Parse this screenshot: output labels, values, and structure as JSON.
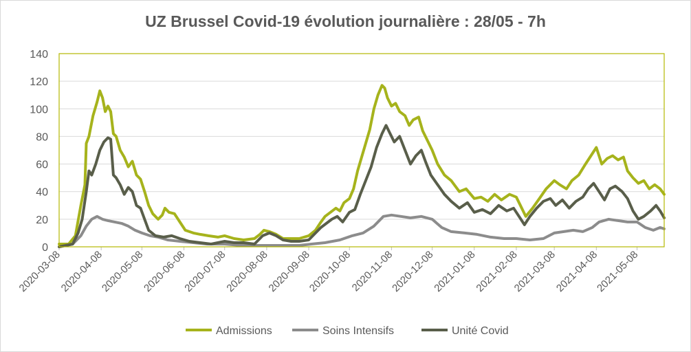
{
  "chart_data": {
    "type": "line",
    "title": "UZ Brussel Covid-19 évolution journalière : 28/05 - 7h",
    "xlabel": "",
    "ylabel": "",
    "ylim": [
      0,
      140
    ],
    "yticks": [
      "0",
      "20",
      "40",
      "60",
      "80",
      "100",
      "120",
      "140"
    ],
    "xticks": [
      "2020-03-08",
      "2020-04-08",
      "2020-05-08",
      "2020-06-08",
      "2020-07-08",
      "2020-08-08",
      "2020-09-08",
      "2020-10-08",
      "2020-11-08",
      "2020-12-08",
      "2021-01-08",
      "2021-02-08",
      "2021-03-08",
      "2021-04-08",
      "2021-05-08"
    ],
    "grid": true,
    "legend": "bottom",
    "x_range": [
      "2020-03-08",
      "2021-05-28"
    ],
    "series": [
      {
        "name": "Admissions",
        "color": "#a6b31c",
        "points": [
          [
            "2020-03-08",
            2
          ],
          [
            "2020-03-15",
            2
          ],
          [
            "2020-03-20",
            8
          ],
          [
            "2020-03-24",
            30
          ],
          [
            "2020-03-27",
            45
          ],
          [
            "2020-03-28",
            75
          ],
          [
            "2020-03-30",
            80
          ],
          [
            "2020-04-02",
            95
          ],
          [
            "2020-04-05",
            105
          ],
          [
            "2020-04-07",
            113
          ],
          [
            "2020-04-09",
            108
          ],
          [
            "2020-04-11",
            98
          ],
          [
            "2020-04-13",
            102
          ],
          [
            "2020-04-15",
            98
          ],
          [
            "2020-04-17",
            82
          ],
          [
            "2020-04-19",
            80
          ],
          [
            "2020-04-22",
            70
          ],
          [
            "2020-04-25",
            65
          ],
          [
            "2020-04-28",
            58
          ],
          [
            "2020-05-01",
            62
          ],
          [
            "2020-05-04",
            52
          ],
          [
            "2020-05-07",
            49
          ],
          [
            "2020-05-10",
            40
          ],
          [
            "2020-05-13",
            30
          ],
          [
            "2020-05-16",
            24
          ],
          [
            "2020-05-20",
            20
          ],
          [
            "2020-05-23",
            23
          ],
          [
            "2020-05-25",
            28
          ],
          [
            "2020-05-28",
            25
          ],
          [
            "2020-06-01",
            24
          ],
          [
            "2020-06-05",
            18
          ],
          [
            "2020-06-09",
            12
          ],
          [
            "2020-06-15",
            10
          ],
          [
            "2020-06-20",
            9
          ],
          [
            "2020-06-26",
            8
          ],
          [
            "2020-07-03",
            7
          ],
          [
            "2020-07-08",
            8
          ],
          [
            "2020-07-15",
            6
          ],
          [
            "2020-07-22",
            5
          ],
          [
            "2020-07-30",
            6
          ],
          [
            "2020-08-03",
            9
          ],
          [
            "2020-08-06",
            12
          ],
          [
            "2020-08-10",
            11
          ],
          [
            "2020-08-15",
            9
          ],
          [
            "2020-08-20",
            6
          ],
          [
            "2020-08-26",
            6
          ],
          [
            "2020-09-01",
            6
          ],
          [
            "2020-09-08",
            8
          ],
          [
            "2020-09-13",
            12
          ],
          [
            "2020-09-17",
            18
          ],
          [
            "2020-09-20",
            22
          ],
          [
            "2020-09-24",
            25
          ],
          [
            "2020-09-28",
            28
          ],
          [
            "2020-10-01",
            26
          ],
          [
            "2020-10-04",
            32
          ],
          [
            "2020-10-08",
            35
          ],
          [
            "2020-10-11",
            42
          ],
          [
            "2020-10-14",
            55
          ],
          [
            "2020-10-17",
            65
          ],
          [
            "2020-10-20",
            75
          ],
          [
            "2020-10-23",
            85
          ],
          [
            "2020-10-26",
            100
          ],
          [
            "2020-10-29",
            110
          ],
          [
            "2020-11-01",
            117
          ],
          [
            "2020-11-03",
            115
          ],
          [
            "2020-11-05",
            108
          ],
          [
            "2020-11-08",
            102
          ],
          [
            "2020-11-11",
            104
          ],
          [
            "2020-11-14",
            98
          ],
          [
            "2020-11-18",
            95
          ],
          [
            "2020-11-21",
            88
          ],
          [
            "2020-11-24",
            92
          ],
          [
            "2020-11-28",
            94
          ],
          [
            "2020-12-01",
            84
          ],
          [
            "2020-12-04",
            78
          ],
          [
            "2020-12-08",
            70
          ],
          [
            "2020-12-12",
            60
          ],
          [
            "2020-12-17",
            52
          ],
          [
            "2020-12-22",
            48
          ],
          [
            "2020-12-28",
            40
          ],
          [
            "2021-01-02",
            42
          ],
          [
            "2021-01-08",
            35
          ],
          [
            "2021-01-13",
            36
          ],
          [
            "2021-01-18",
            33
          ],
          [
            "2021-01-23",
            38
          ],
          [
            "2021-01-28",
            34
          ],
          [
            "2021-02-03",
            38
          ],
          [
            "2021-02-08",
            36
          ],
          [
            "2021-02-11",
            30
          ],
          [
            "2021-02-15",
            22
          ],
          [
            "2021-02-20",
            28
          ],
          [
            "2021-02-25",
            35
          ],
          [
            "2021-03-02",
            42
          ],
          [
            "2021-03-08",
            48
          ],
          [
            "2021-03-12",
            45
          ],
          [
            "2021-03-17",
            42
          ],
          [
            "2021-03-21",
            48
          ],
          [
            "2021-03-26",
            52
          ],
          [
            "2021-03-31",
            60
          ],
          [
            "2021-04-04",
            66
          ],
          [
            "2021-04-08",
            72
          ],
          [
            "2021-04-12",
            60
          ],
          [
            "2021-04-16",
            64
          ],
          [
            "2021-04-20",
            66
          ],
          [
            "2021-04-24",
            63
          ],
          [
            "2021-04-28",
            65
          ],
          [
            "2021-05-01",
            55
          ],
          [
            "2021-05-05",
            50
          ],
          [
            "2021-05-09",
            46
          ],
          [
            "2021-05-13",
            48
          ],
          [
            "2021-05-17",
            42
          ],
          [
            "2021-05-21",
            45
          ],
          [
            "2021-05-25",
            42
          ],
          [
            "2021-05-28",
            38
          ]
        ]
      },
      {
        "name": "Soins Intensifs",
        "color": "#8c8c8c",
        "points": [
          [
            "2020-03-08",
            0
          ],
          [
            "2020-03-18",
            2
          ],
          [
            "2020-03-24",
            8
          ],
          [
            "2020-03-28",
            15
          ],
          [
            "2020-04-01",
            20
          ],
          [
            "2020-04-05",
            22
          ],
          [
            "2020-04-09",
            20
          ],
          [
            "2020-04-13",
            19
          ],
          [
            "2020-04-18",
            18
          ],
          [
            "2020-04-23",
            17
          ],
          [
            "2020-04-28",
            15
          ],
          [
            "2020-05-03",
            12
          ],
          [
            "2020-05-08",
            10
          ],
          [
            "2020-05-14",
            8
          ],
          [
            "2020-05-20",
            7
          ],
          [
            "2020-05-27",
            5
          ],
          [
            "2020-06-05",
            4
          ],
          [
            "2020-06-15",
            3
          ],
          [
            "2020-06-25",
            2
          ],
          [
            "2020-07-08",
            2
          ],
          [
            "2020-07-20",
            1
          ],
          [
            "2020-08-01",
            1
          ],
          [
            "2020-08-15",
            1
          ],
          [
            "2020-09-01",
            1
          ],
          [
            "2020-09-10",
            2
          ],
          [
            "2020-09-20",
            3
          ],
          [
            "2020-10-01",
            5
          ],
          [
            "2020-10-10",
            8
          ],
          [
            "2020-10-18",
            10
          ],
          [
            "2020-10-26",
            15
          ],
          [
            "2020-11-02",
            22
          ],
          [
            "2020-11-08",
            23
          ],
          [
            "2020-11-15",
            22
          ],
          [
            "2020-11-22",
            21
          ],
          [
            "2020-11-30",
            22
          ],
          [
            "2020-12-08",
            20
          ],
          [
            "2020-12-15",
            14
          ],
          [
            "2020-12-22",
            11
          ],
          [
            "2021-01-01",
            10
          ],
          [
            "2021-01-10",
            9
          ],
          [
            "2021-01-20",
            7
          ],
          [
            "2021-01-30",
            6
          ],
          [
            "2021-02-08",
            6
          ],
          [
            "2021-02-18",
            5
          ],
          [
            "2021-02-28",
            6
          ],
          [
            "2021-03-08",
            10
          ],
          [
            "2021-03-15",
            11
          ],
          [
            "2021-03-22",
            12
          ],
          [
            "2021-03-29",
            11
          ],
          [
            "2021-04-05",
            14
          ],
          [
            "2021-04-10",
            18
          ],
          [
            "2021-04-17",
            20
          ],
          [
            "2021-04-24",
            19
          ],
          [
            "2021-05-01",
            18
          ],
          [
            "2021-05-08",
            18
          ],
          [
            "2021-05-14",
            14
          ],
          [
            "2021-05-20",
            12
          ],
          [
            "2021-05-25",
            14
          ],
          [
            "2021-05-28",
            13
          ]
        ]
      },
      {
        "name": "Unité Covid",
        "color": "#595e4a",
        "points": [
          [
            "2020-03-08",
            0
          ],
          [
            "2020-03-18",
            2
          ],
          [
            "2020-03-22",
            10
          ],
          [
            "2020-03-25",
            20
          ],
          [
            "2020-03-28",
            40
          ],
          [
            "2020-03-30",
            55
          ],
          [
            "2020-04-01",
            52
          ],
          [
            "2020-04-04",
            60
          ],
          [
            "2020-04-07",
            70
          ],
          [
            "2020-04-10",
            76
          ],
          [
            "2020-04-13",
            79
          ],
          [
            "2020-04-15",
            78
          ],
          [
            "2020-04-17",
            52
          ],
          [
            "2020-04-19",
            50
          ],
          [
            "2020-04-22",
            45
          ],
          [
            "2020-04-25",
            38
          ],
          [
            "2020-04-28",
            43
          ],
          [
            "2020-05-01",
            40
          ],
          [
            "2020-05-04",
            30
          ],
          [
            "2020-05-07",
            28
          ],
          [
            "2020-05-10",
            20
          ],
          [
            "2020-05-13",
            12
          ],
          [
            "2020-05-18",
            8
          ],
          [
            "2020-05-24",
            7
          ],
          [
            "2020-05-30",
            8
          ],
          [
            "2020-06-05",
            6
          ],
          [
            "2020-06-12",
            4
          ],
          [
            "2020-06-20",
            3
          ],
          [
            "2020-06-28",
            2
          ],
          [
            "2020-07-08",
            4
          ],
          [
            "2020-07-15",
            3
          ],
          [
            "2020-07-22",
            3
          ],
          [
            "2020-07-30",
            2
          ],
          [
            "2020-08-05",
            8
          ],
          [
            "2020-08-10",
            10
          ],
          [
            "2020-08-15",
            8
          ],
          [
            "2020-08-20",
            5
          ],
          [
            "2020-08-26",
            4
          ],
          [
            "2020-09-01",
            4
          ],
          [
            "2020-09-08",
            5
          ],
          [
            "2020-09-13",
            10
          ],
          [
            "2020-09-17",
            14
          ],
          [
            "2020-09-21",
            17
          ],
          [
            "2020-09-25",
            20
          ],
          [
            "2020-09-29",
            22
          ],
          [
            "2020-10-03",
            18
          ],
          [
            "2020-10-08",
            25
          ],
          [
            "2020-10-12",
            27
          ],
          [
            "2020-10-16",
            38
          ],
          [
            "2020-10-20",
            48
          ],
          [
            "2020-10-24",
            58
          ],
          [
            "2020-10-28",
            72
          ],
          [
            "2020-11-01",
            82
          ],
          [
            "2020-11-04",
            88
          ],
          [
            "2020-11-07",
            82
          ],
          [
            "2020-11-10",
            76
          ],
          [
            "2020-11-14",
            80
          ],
          [
            "2020-11-18",
            70
          ],
          [
            "2020-11-22",
            60
          ],
          [
            "2020-11-26",
            66
          ],
          [
            "2020-11-30",
            70
          ],
          [
            "2020-12-03",
            62
          ],
          [
            "2020-12-07",
            52
          ],
          [
            "2020-12-12",
            45
          ],
          [
            "2020-12-17",
            38
          ],
          [
            "2020-12-22",
            33
          ],
          [
            "2020-12-28",
            28
          ],
          [
            "2021-01-03",
            32
          ],
          [
            "2021-01-08",
            25
          ],
          [
            "2021-01-14",
            27
          ],
          [
            "2021-01-20",
            24
          ],
          [
            "2021-01-26",
            30
          ],
          [
            "2021-02-01",
            26
          ],
          [
            "2021-02-06",
            28
          ],
          [
            "2021-02-10",
            22
          ],
          [
            "2021-02-14",
            16
          ],
          [
            "2021-02-18",
            22
          ],
          [
            "2021-02-23",
            28
          ],
          [
            "2021-02-28",
            33
          ],
          [
            "2021-03-05",
            35
          ],
          [
            "2021-03-09",
            30
          ],
          [
            "2021-03-14",
            34
          ],
          [
            "2021-03-19",
            28
          ],
          [
            "2021-03-24",
            33
          ],
          [
            "2021-03-29",
            36
          ],
          [
            "2021-04-02",
            42
          ],
          [
            "2021-04-06",
            46
          ],
          [
            "2021-04-10",
            40
          ],
          [
            "2021-04-14",
            34
          ],
          [
            "2021-04-18",
            42
          ],
          [
            "2021-04-22",
            44
          ],
          [
            "2021-04-27",
            40
          ],
          [
            "2021-05-01",
            35
          ],
          [
            "2021-05-05",
            26
          ],
          [
            "2021-05-09",
            20
          ],
          [
            "2021-05-13",
            22
          ],
          [
            "2021-05-18",
            26
          ],
          [
            "2021-05-22",
            30
          ],
          [
            "2021-05-25",
            26
          ],
          [
            "2021-05-28",
            21
          ]
        ]
      }
    ]
  }
}
